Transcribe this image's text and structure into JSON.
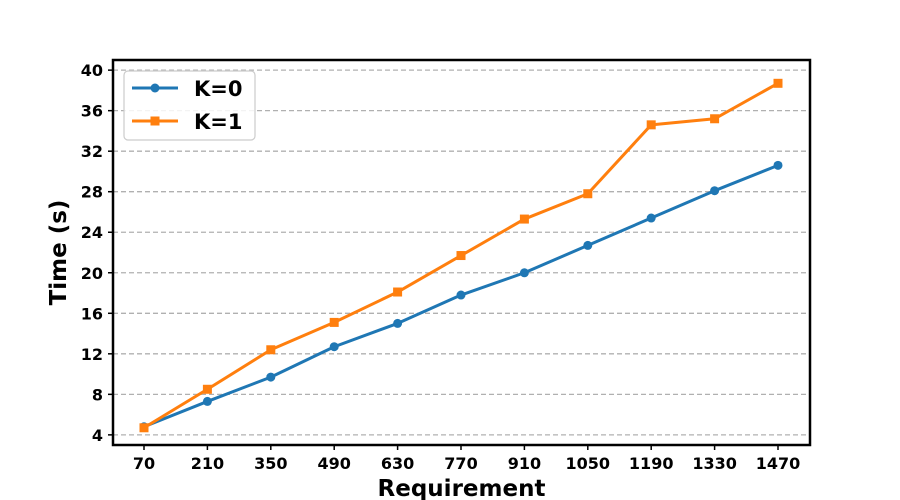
{
  "chart_data": {
    "type": "line",
    "categories": [
      "70",
      "210",
      "350",
      "490",
      "630",
      "770",
      "910",
      "1050",
      "1190",
      "1330",
      "1470"
    ],
    "x": [
      70,
      210,
      350,
      490,
      630,
      770,
      910,
      1050,
      1190,
      1330,
      1470
    ],
    "series": [
      {
        "name": "K=0",
        "color": "#1f77b4",
        "marker": "circle",
        "values": [
          4.8,
          7.3,
          9.7,
          12.7,
          15.0,
          17.8,
          20.0,
          22.7,
          25.4,
          28.1,
          30.6
        ]
      },
      {
        "name": "K=1",
        "color": "#ff7f0e",
        "marker": "square",
        "values": [
          4.7,
          8.5,
          12.4,
          15.1,
          18.1,
          21.7,
          25.3,
          27.8,
          34.6,
          35.2,
          38.7
        ]
      }
    ],
    "xlabel": "Requirement",
    "ylabel": "Time (s)",
    "ylim": [
      3,
      41
    ],
    "yticks": [
      4,
      8,
      12,
      16,
      20,
      24,
      28,
      32,
      36,
      40
    ],
    "grid": "horizontal-dashed",
    "legend_position": "top-left"
  }
}
